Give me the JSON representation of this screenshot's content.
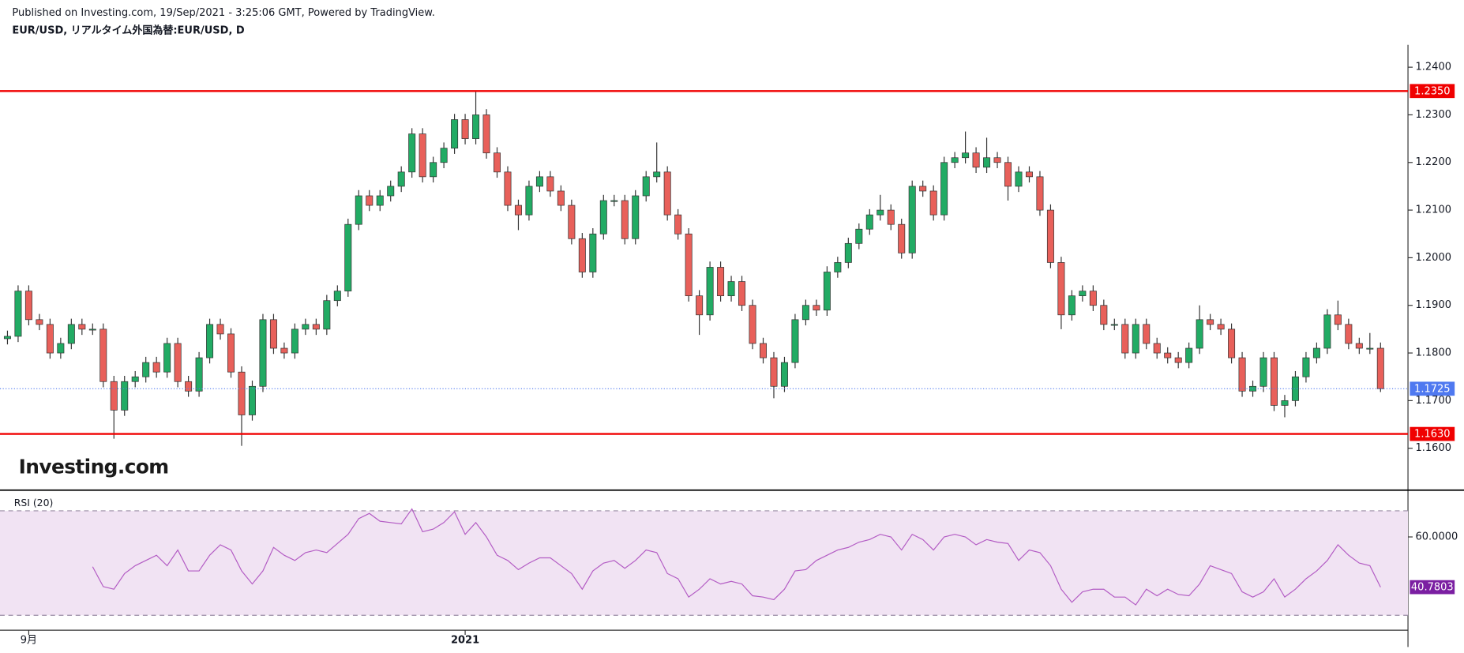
{
  "header": "Published on Investing.com, 19/Sep/2021 - 3:25:06 GMT, Powered by TradingView.",
  "chart_data": [
    {
      "type": "candlestick",
      "title": "EUR/USD, リアルタイム外国為替:EUR/USD, D",
      "watermark": "Investing.com",
      "categories": [
        null,
        null,
        "9月",
        null,
        null,
        null,
        null,
        null,
        null,
        null,
        null,
        null,
        null,
        null,
        null,
        null,
        null,
        null,
        null,
        null,
        null,
        null,
        null,
        null,
        null,
        null,
        null,
        null,
        null,
        null,
        null,
        null,
        null,
        null,
        null,
        null,
        null,
        null,
        null,
        null,
        null,
        null,
        null,
        "2021",
        null,
        null,
        null,
        null,
        null,
        null,
        null,
        null,
        null,
        null,
        null,
        null,
        null,
        null,
        null,
        null,
        null,
        null,
        null,
        null,
        null,
        null,
        null,
        null,
        null,
        null,
        null,
        null,
        null,
        null,
        null,
        null,
        null,
        null,
        null,
        null,
        null,
        null,
        null,
        null,
        null,
        null,
        null,
        null,
        null,
        null,
        null,
        null,
        null,
        null,
        null,
        null,
        null,
        null,
        null,
        null,
        null,
        null,
        null,
        null,
        null,
        null,
        null,
        null,
        null,
        null,
        null,
        null,
        null,
        null,
        null,
        null,
        null,
        null,
        null,
        null,
        null,
        null,
        null,
        null,
        null,
        null,
        null,
        null,
        null,
        null
      ],
      "ohlc": [
        [
          1.183,
          1.1847,
          1.1818,
          1.1835
        ],
        [
          1.1835,
          1.1942,
          1.1823,
          1.193
        ],
        [
          1.193,
          1.1942,
          1.1858,
          1.187
        ],
        [
          1.187,
          1.1882,
          1.1848,
          1.186
        ],
        [
          1.186,
          1.1872,
          1.1788,
          1.18
        ],
        [
          1.18,
          1.1832,
          1.1788,
          1.182
        ],
        [
          1.182,
          1.1872,
          1.1808,
          1.186
        ],
        [
          1.186,
          1.1872,
          1.1838,
          1.185
        ],
        [
          1.185,
          1.1862,
          1.1838,
          1.185
        ],
        [
          1.185,
          1.1862,
          1.1728,
          1.174
        ],
        [
          1.174,
          1.1752,
          1.162,
          1.168
        ],
        [
          1.168,
          1.1752,
          1.1668,
          1.174
        ],
        [
          1.174,
          1.1762,
          1.1728,
          1.175
        ],
        [
          1.175,
          1.1792,
          1.1738,
          1.178
        ],
        [
          1.178,
          1.1792,
          1.1748,
          1.176
        ],
        [
          1.176,
          1.1832,
          1.1748,
          1.182
        ],
        [
          1.182,
          1.1832,
          1.1728,
          1.174
        ],
        [
          1.174,
          1.1752,
          1.1708,
          1.172
        ],
        [
          1.172,
          1.1802,
          1.1708,
          1.179
        ],
        [
          1.179,
          1.1872,
          1.1778,
          1.186
        ],
        [
          1.186,
          1.1872,
          1.1828,
          1.184
        ],
        [
          1.184,
          1.1852,
          1.1748,
          1.176
        ],
        [
          1.176,
          1.1772,
          1.1605,
          1.167
        ],
        [
          1.167,
          1.1742,
          1.1658,
          1.173
        ],
        [
          1.173,
          1.1882,
          1.1718,
          1.187
        ],
        [
          1.187,
          1.1882,
          1.1798,
          1.181
        ],
        [
          1.181,
          1.1822,
          1.1788,
          1.18
        ],
        [
          1.18,
          1.1862,
          1.1788,
          1.185
        ],
        [
          1.185,
          1.1872,
          1.1838,
          1.186
        ],
        [
          1.186,
          1.1872,
          1.1838,
          1.185
        ],
        [
          1.185,
          1.1922,
          1.1838,
          1.191
        ],
        [
          1.191,
          1.1942,
          1.1898,
          1.193
        ],
        [
          1.193,
          1.2082,
          1.1918,
          1.207
        ],
        [
          1.207,
          1.2142,
          1.2058,
          1.213
        ],
        [
          1.213,
          1.2142,
          1.2098,
          1.211
        ],
        [
          1.211,
          1.2142,
          1.2098,
          1.213
        ],
        [
          1.213,
          1.2162,
          1.2118,
          1.215
        ],
        [
          1.215,
          1.2192,
          1.2138,
          1.218
        ],
        [
          1.218,
          1.2272,
          1.2168,
          1.226
        ],
        [
          1.226,
          1.2272,
          1.2158,
          1.217
        ],
        [
          1.217,
          1.2212,
          1.2158,
          1.22
        ],
        [
          1.22,
          1.2242,
          1.2188,
          1.223
        ],
        [
          1.223,
          1.2302,
          1.2218,
          1.229
        ],
        [
          1.229,
          1.2302,
          1.2238,
          1.225
        ],
        [
          1.225,
          1.235,
          1.2238,
          1.23
        ],
        [
          1.23,
          1.2312,
          1.2208,
          1.222
        ],
        [
          1.222,
          1.2232,
          1.2168,
          1.218
        ],
        [
          1.218,
          1.2192,
          1.2098,
          1.211
        ],
        [
          1.211,
          1.2122,
          1.2058,
          1.209
        ],
        [
          1.209,
          1.2162,
          1.2078,
          1.215
        ],
        [
          1.215,
          1.2182,
          1.2138,
          1.217
        ],
        [
          1.217,
          1.2182,
          1.2128,
          1.214
        ],
        [
          1.214,
          1.2152,
          1.2098,
          1.211
        ],
        [
          1.211,
          1.2122,
          1.2028,
          1.204
        ],
        [
          1.204,
          1.2052,
          1.1958,
          1.197
        ],
        [
          1.197,
          1.2062,
          1.1958,
          1.205
        ],
        [
          1.205,
          1.2132,
          1.2038,
          1.212
        ],
        [
          1.212,
          1.2132,
          1.2108,
          1.212
        ],
        [
          1.212,
          1.2132,
          1.2028,
          1.204
        ],
        [
          1.204,
          1.2142,
          1.2028,
          1.213
        ],
        [
          1.213,
          1.2182,
          1.2118,
          1.217
        ],
        [
          1.217,
          1.2242,
          1.2158,
          1.218
        ],
        [
          1.218,
          1.2192,
          1.2078,
          1.209
        ],
        [
          1.209,
          1.2102,
          1.2038,
          1.205
        ],
        [
          1.205,
          1.2062,
          1.1908,
          1.192
        ],
        [
          1.192,
          1.1932,
          1.1838,
          1.188
        ],
        [
          1.188,
          1.1992,
          1.1868,
          1.198
        ],
        [
          1.198,
          1.1992,
          1.1908,
          1.192
        ],
        [
          1.192,
          1.1962,
          1.1908,
          1.195
        ],
        [
          1.195,
          1.1962,
          1.1888,
          1.19
        ],
        [
          1.19,
          1.1912,
          1.1808,
          1.182
        ],
        [
          1.182,
          1.1832,
          1.1778,
          1.179
        ],
        [
          1.179,
          1.1802,
          1.1705,
          1.173
        ],
        [
          1.173,
          1.1792,
          1.1718,
          1.178
        ],
        [
          1.178,
          1.1882,
          1.1768,
          1.187
        ],
        [
          1.187,
          1.1912,
          1.1858,
          1.19
        ],
        [
          1.19,
          1.1912,
          1.1878,
          1.189
        ],
        [
          1.189,
          1.1982,
          1.1878,
          1.197
        ],
        [
          1.197,
          1.2002,
          1.1958,
          1.199
        ],
        [
          1.199,
          1.2042,
          1.1978,
          1.203
        ],
        [
          1.203,
          1.2072,
          1.2018,
          1.206
        ],
        [
          1.206,
          1.2102,
          1.2048,
          1.209
        ],
        [
          1.209,
          1.2132,
          1.2078,
          1.21
        ],
        [
          1.21,
          1.2112,
          1.2058,
          1.207
        ],
        [
          1.207,
          1.2082,
          1.1998,
          1.201
        ],
        [
          1.201,
          1.2162,
          1.1998,
          1.215
        ],
        [
          1.215,
          1.2162,
          1.2128,
          1.214
        ],
        [
          1.214,
          1.2152,
          1.2078,
          1.209
        ],
        [
          1.209,
          1.2212,
          1.2078,
          1.22
        ],
        [
          1.22,
          1.2222,
          1.2188,
          1.221
        ],
        [
          1.221,
          1.2265,
          1.2198,
          1.222
        ],
        [
          1.222,
          1.2232,
          1.2178,
          1.219
        ],
        [
          1.219,
          1.2252,
          1.2178,
          1.221
        ],
        [
          1.221,
          1.2222,
          1.2188,
          1.22
        ],
        [
          1.22,
          1.2212,
          1.212,
          1.215
        ],
        [
          1.215,
          1.2192,
          1.2138,
          1.218
        ],
        [
          1.218,
          1.2192,
          1.2158,
          1.217
        ],
        [
          1.217,
          1.2182,
          1.2088,
          1.21
        ],
        [
          1.21,
          1.2112,
          1.1978,
          1.199
        ],
        [
          1.199,
          1.2002,
          1.185,
          1.188
        ],
        [
          1.188,
          1.1932,
          1.1868,
          1.192
        ],
        [
          1.192,
          1.1942,
          1.1908,
          1.193
        ],
        [
          1.193,
          1.1942,
          1.1888,
          1.19
        ],
        [
          1.19,
          1.1912,
          1.1848,
          1.186
        ],
        [
          1.186,
          1.1872,
          1.1848,
          1.186
        ],
        [
          1.186,
          1.1872,
          1.1788,
          1.18
        ],
        [
          1.18,
          1.1872,
          1.1788,
          1.186
        ],
        [
          1.186,
          1.1872,
          1.1808,
          1.182
        ],
        [
          1.182,
          1.1832,
          1.1788,
          1.18
        ],
        [
          1.18,
          1.1812,
          1.1778,
          1.179
        ],
        [
          1.179,
          1.1802,
          1.1768,
          1.178
        ],
        [
          1.178,
          1.1822,
          1.1768,
          1.181
        ],
        [
          1.181,
          1.19,
          1.1798,
          1.187
        ],
        [
          1.187,
          1.1882,
          1.1848,
          1.186
        ],
        [
          1.186,
          1.1872,
          1.1838,
          1.185
        ],
        [
          1.185,
          1.1862,
          1.1778,
          1.179
        ],
        [
          1.179,
          1.1802,
          1.1708,
          1.172
        ],
        [
          1.172,
          1.1742,
          1.1708,
          1.173
        ],
        [
          1.173,
          1.1802,
          1.1718,
          1.179
        ],
        [
          1.179,
          1.1802,
          1.1678,
          1.169
        ],
        [
          1.169,
          1.1712,
          1.1665,
          1.17
        ],
        [
          1.17,
          1.1762,
          1.1688,
          1.175
        ],
        [
          1.175,
          1.1802,
          1.1738,
          1.179
        ],
        [
          1.179,
          1.1822,
          1.1778,
          1.181
        ],
        [
          1.181,
          1.1892,
          1.1798,
          1.188
        ],
        [
          1.188,
          1.191,
          1.1848,
          1.186
        ],
        [
          1.186,
          1.1872,
          1.1808,
          1.182
        ],
        [
          1.182,
          1.1832,
          1.1798,
          1.181
        ],
        [
          1.181,
          1.1842,
          1.1798,
          1.181
        ],
        [
          1.181,
          1.1822,
          1.1718,
          1.1725
        ]
      ],
      "up_color": "#22ab64",
      "down_color": "#e8605a",
      "ylim": [
        1.1512,
        1.2447
      ],
      "yticks": [
        {
          "value": 1.16,
          "label": "1.1600"
        },
        {
          "value": 1.17,
          "label": "1.1700"
        },
        {
          "value": 1.18,
          "label": "1.1800"
        },
        {
          "value": 1.19,
          "label": "1.1900"
        },
        {
          "value": 1.2,
          "label": "1.2000"
        },
        {
          "value": 1.21,
          "label": "1.2100"
        },
        {
          "value": 1.22,
          "label": "1.2200"
        },
        {
          "value": 1.23,
          "label": "1.2300"
        },
        {
          "value": 1.24,
          "label": "1.2400"
        }
      ],
      "levels": [
        {
          "value": 1.235,
          "label": "1.2350"
        },
        {
          "value": 1.163,
          "label": "1.1630"
        }
      ],
      "level_color": "#f00000",
      "last_price": {
        "value": 1.1725,
        "label": "1.1725"
      },
      "last_color": "#4f79f0"
    },
    {
      "type": "line",
      "title": "RSI (20)",
      "color": "#b35cc4",
      "values": [
        null,
        null,
        null,
        null,
        null,
        null,
        null,
        null,
        48.6,
        41,
        40,
        46,
        49,
        51,
        53,
        49,
        55,
        47,
        47,
        53,
        57,
        55,
        47,
        42,
        47,
        56,
        53,
        51,
        54,
        55,
        54,
        57.5,
        61,
        67,
        69,
        66,
        65.5,
        65,
        70.7,
        62,
        63,
        65.5,
        69.6,
        61,
        65.5,
        60,
        53,
        51,
        47.5,
        50,
        52,
        52,
        49,
        46,
        40,
        47,
        50,
        51,
        48,
        51,
        55,
        54,
        46,
        44,
        37,
        40,
        44,
        42,
        43,
        42,
        37.5,
        37,
        36,
        40,
        47,
        47.5,
        51,
        53,
        55,
        56,
        58,
        59,
        61,
        60,
        55,
        61,
        59,
        55,
        60,
        61,
        60,
        57,
        59,
        58,
        57.5,
        51,
        55,
        54,
        49,
        40,
        35,
        39,
        40,
        40,
        37,
        37,
        34,
        40,
        37.5,
        40,
        38,
        37.5,
        42,
        49,
        47.5,
        46,
        39,
        37,
        39,
        44,
        37,
        40,
        44,
        47,
        51,
        57,
        53,
        50,
        49,
        40.7803
      ],
      "ylim": [
        24.3,
        77.9
      ],
      "yticks": [
        {
          "value": 60,
          "label": "60.0000"
        }
      ],
      "band": [
        30,
        70
      ],
      "band_color": "#f1e3f3",
      "last_color": "#7b1fa2"
    }
  ]
}
